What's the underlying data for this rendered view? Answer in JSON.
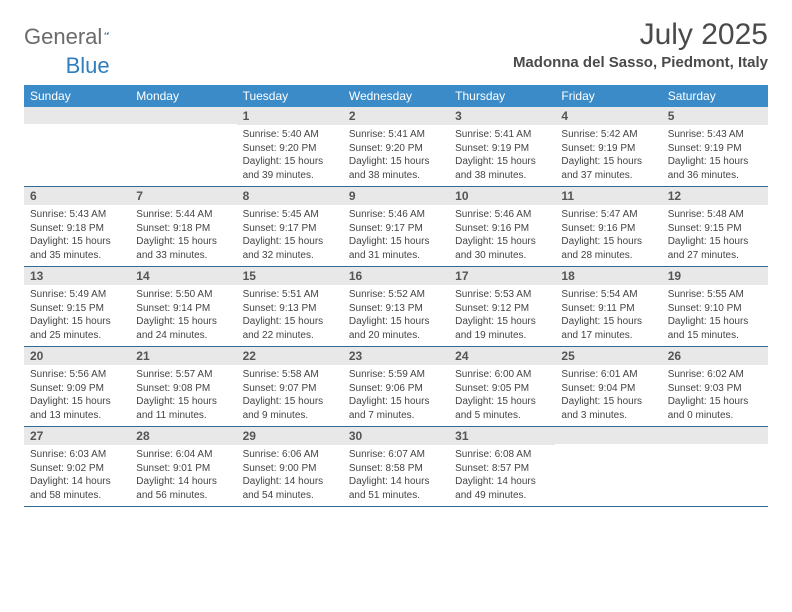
{
  "brand": {
    "part1": "General",
    "part2": "Blue"
  },
  "title": {
    "month": "July 2025",
    "location": "Madonna del Sasso, Piedmont, Italy"
  },
  "colors": {
    "header_bg": "#3b8bc9",
    "header_text": "#ffffff",
    "daynum_bg": "#e8e8e8",
    "daynum_text": "#555555",
    "body_text": "#444444",
    "rule": "#2f6a99",
    "logo_gray": "#6b6b6b",
    "logo_blue": "#2f7fbf"
  },
  "weekdays": [
    "Sunday",
    "Monday",
    "Tuesday",
    "Wednesday",
    "Thursday",
    "Friday",
    "Saturday"
  ],
  "weeks": [
    [
      {
        "n": "",
        "sr": "",
        "ss": "",
        "d1": "",
        "d2": ""
      },
      {
        "n": "",
        "sr": "",
        "ss": "",
        "d1": "",
        "d2": ""
      },
      {
        "n": "1",
        "sr": "Sunrise: 5:40 AM",
        "ss": "Sunset: 9:20 PM",
        "d1": "Daylight: 15 hours",
        "d2": "and 39 minutes."
      },
      {
        "n": "2",
        "sr": "Sunrise: 5:41 AM",
        "ss": "Sunset: 9:20 PM",
        "d1": "Daylight: 15 hours",
        "d2": "and 38 minutes."
      },
      {
        "n": "3",
        "sr": "Sunrise: 5:41 AM",
        "ss": "Sunset: 9:19 PM",
        "d1": "Daylight: 15 hours",
        "d2": "and 38 minutes."
      },
      {
        "n": "4",
        "sr": "Sunrise: 5:42 AM",
        "ss": "Sunset: 9:19 PM",
        "d1": "Daylight: 15 hours",
        "d2": "and 37 minutes."
      },
      {
        "n": "5",
        "sr": "Sunrise: 5:43 AM",
        "ss": "Sunset: 9:19 PM",
        "d1": "Daylight: 15 hours",
        "d2": "and 36 minutes."
      }
    ],
    [
      {
        "n": "6",
        "sr": "Sunrise: 5:43 AM",
        "ss": "Sunset: 9:18 PM",
        "d1": "Daylight: 15 hours",
        "d2": "and 35 minutes."
      },
      {
        "n": "7",
        "sr": "Sunrise: 5:44 AM",
        "ss": "Sunset: 9:18 PM",
        "d1": "Daylight: 15 hours",
        "d2": "and 33 minutes."
      },
      {
        "n": "8",
        "sr": "Sunrise: 5:45 AM",
        "ss": "Sunset: 9:17 PM",
        "d1": "Daylight: 15 hours",
        "d2": "and 32 minutes."
      },
      {
        "n": "9",
        "sr": "Sunrise: 5:46 AM",
        "ss": "Sunset: 9:17 PM",
        "d1": "Daylight: 15 hours",
        "d2": "and 31 minutes."
      },
      {
        "n": "10",
        "sr": "Sunrise: 5:46 AM",
        "ss": "Sunset: 9:16 PM",
        "d1": "Daylight: 15 hours",
        "d2": "and 30 minutes."
      },
      {
        "n": "11",
        "sr": "Sunrise: 5:47 AM",
        "ss": "Sunset: 9:16 PM",
        "d1": "Daylight: 15 hours",
        "d2": "and 28 minutes."
      },
      {
        "n": "12",
        "sr": "Sunrise: 5:48 AM",
        "ss": "Sunset: 9:15 PM",
        "d1": "Daylight: 15 hours",
        "d2": "and 27 minutes."
      }
    ],
    [
      {
        "n": "13",
        "sr": "Sunrise: 5:49 AM",
        "ss": "Sunset: 9:15 PM",
        "d1": "Daylight: 15 hours",
        "d2": "and 25 minutes."
      },
      {
        "n": "14",
        "sr": "Sunrise: 5:50 AM",
        "ss": "Sunset: 9:14 PM",
        "d1": "Daylight: 15 hours",
        "d2": "and 24 minutes."
      },
      {
        "n": "15",
        "sr": "Sunrise: 5:51 AM",
        "ss": "Sunset: 9:13 PM",
        "d1": "Daylight: 15 hours",
        "d2": "and 22 minutes."
      },
      {
        "n": "16",
        "sr": "Sunrise: 5:52 AM",
        "ss": "Sunset: 9:13 PM",
        "d1": "Daylight: 15 hours",
        "d2": "and 20 minutes."
      },
      {
        "n": "17",
        "sr": "Sunrise: 5:53 AM",
        "ss": "Sunset: 9:12 PM",
        "d1": "Daylight: 15 hours",
        "d2": "and 19 minutes."
      },
      {
        "n": "18",
        "sr": "Sunrise: 5:54 AM",
        "ss": "Sunset: 9:11 PM",
        "d1": "Daylight: 15 hours",
        "d2": "and 17 minutes."
      },
      {
        "n": "19",
        "sr": "Sunrise: 5:55 AM",
        "ss": "Sunset: 9:10 PM",
        "d1": "Daylight: 15 hours",
        "d2": "and 15 minutes."
      }
    ],
    [
      {
        "n": "20",
        "sr": "Sunrise: 5:56 AM",
        "ss": "Sunset: 9:09 PM",
        "d1": "Daylight: 15 hours",
        "d2": "and 13 minutes."
      },
      {
        "n": "21",
        "sr": "Sunrise: 5:57 AM",
        "ss": "Sunset: 9:08 PM",
        "d1": "Daylight: 15 hours",
        "d2": "and 11 minutes."
      },
      {
        "n": "22",
        "sr": "Sunrise: 5:58 AM",
        "ss": "Sunset: 9:07 PM",
        "d1": "Daylight: 15 hours",
        "d2": "and 9 minutes."
      },
      {
        "n": "23",
        "sr": "Sunrise: 5:59 AM",
        "ss": "Sunset: 9:06 PM",
        "d1": "Daylight: 15 hours",
        "d2": "and 7 minutes."
      },
      {
        "n": "24",
        "sr": "Sunrise: 6:00 AM",
        "ss": "Sunset: 9:05 PM",
        "d1": "Daylight: 15 hours",
        "d2": "and 5 minutes."
      },
      {
        "n": "25",
        "sr": "Sunrise: 6:01 AM",
        "ss": "Sunset: 9:04 PM",
        "d1": "Daylight: 15 hours",
        "d2": "and 3 minutes."
      },
      {
        "n": "26",
        "sr": "Sunrise: 6:02 AM",
        "ss": "Sunset: 9:03 PM",
        "d1": "Daylight: 15 hours",
        "d2": "and 0 minutes."
      }
    ],
    [
      {
        "n": "27",
        "sr": "Sunrise: 6:03 AM",
        "ss": "Sunset: 9:02 PM",
        "d1": "Daylight: 14 hours",
        "d2": "and 58 minutes."
      },
      {
        "n": "28",
        "sr": "Sunrise: 6:04 AM",
        "ss": "Sunset: 9:01 PM",
        "d1": "Daylight: 14 hours",
        "d2": "and 56 minutes."
      },
      {
        "n": "29",
        "sr": "Sunrise: 6:06 AM",
        "ss": "Sunset: 9:00 PM",
        "d1": "Daylight: 14 hours",
        "d2": "and 54 minutes."
      },
      {
        "n": "30",
        "sr": "Sunrise: 6:07 AM",
        "ss": "Sunset: 8:58 PM",
        "d1": "Daylight: 14 hours",
        "d2": "and 51 minutes."
      },
      {
        "n": "31",
        "sr": "Sunrise: 6:08 AM",
        "ss": "Sunset: 8:57 PM",
        "d1": "Daylight: 14 hours",
        "d2": "and 49 minutes."
      },
      {
        "n": "",
        "sr": "",
        "ss": "",
        "d1": "",
        "d2": ""
      },
      {
        "n": "",
        "sr": "",
        "ss": "",
        "d1": "",
        "d2": ""
      }
    ]
  ]
}
